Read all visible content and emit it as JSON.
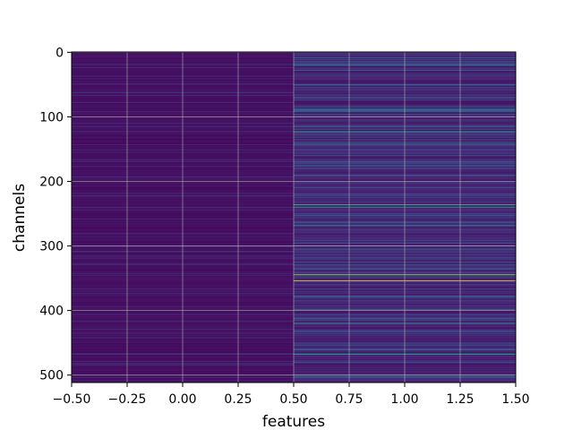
{
  "chart_data": {
    "type": "heatmap",
    "title": "",
    "xlabel": "features",
    "ylabel": "channels",
    "xlim": [
      -0.5,
      1.5
    ],
    "ylim": [
      512,
      0
    ],
    "y_axis_inverted": true,
    "grid": true,
    "colormap": "viridis",
    "x_ticks": [
      -0.5,
      -0.25,
      0.0,
      0.25,
      0.5,
      0.75,
      1.0,
      1.25,
      1.5
    ],
    "x_tick_labels": [
      "−0.50",
      "−0.25",
      "0.00",
      "0.25",
      "0.50",
      "0.75",
      "1.00",
      "1.25",
      "1.50"
    ],
    "y_ticks": [
      0,
      100,
      200,
      300,
      400,
      500
    ],
    "y_tick_labels": [
      "0",
      "100",
      "200",
      "300",
      "400",
      "500"
    ],
    "columns": [
      0,
      1
    ],
    "rows": 512,
    "cells": {
      "column_0_description": "uniformly low intensity across all channels",
      "column_1_notable_high_rows": [
        {
          "row": 20,
          "value": 0.45
        },
        {
          "row": 28,
          "value": 0.4
        },
        {
          "row": 50,
          "value": 0.35
        },
        {
          "row": 88,
          "value": 0.5
        },
        {
          "row": 96,
          "value": 0.35
        },
        {
          "row": 123,
          "value": 0.65
        },
        {
          "row": 140,
          "value": 0.4
        },
        {
          "row": 170,
          "value": 0.35
        },
        {
          "row": 210,
          "value": 0.3
        },
        {
          "row": 236,
          "value": 0.7
        },
        {
          "row": 240,
          "value": 0.55
        },
        {
          "row": 268,
          "value": 0.45
        },
        {
          "row": 300,
          "value": 0.35
        },
        {
          "row": 320,
          "value": 0.4
        },
        {
          "row": 344,
          "value": 0.85
        },
        {
          "row": 354,
          "value": 1.0
        },
        {
          "row": 398,
          "value": 0.4
        },
        {
          "row": 420,
          "value": 0.6
        },
        {
          "row": 468,
          "value": 0.6
        },
        {
          "row": 502,
          "value": 0.4
        }
      ]
    }
  }
}
